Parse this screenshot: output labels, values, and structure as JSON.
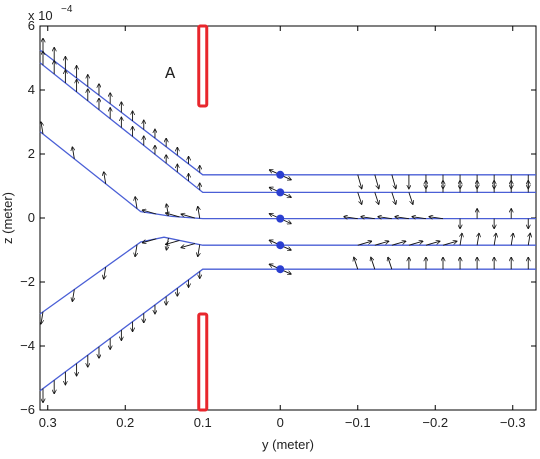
{
  "chart_data": {
    "type": "line",
    "title": "",
    "xlabel": "y (meter)",
    "ylabel": "z (meter)",
    "y_exponent_label": "x 10",
    "y_exponent_power": "−4",
    "xlim": [
      0.31,
      -0.33
    ],
    "ylim": [
      -6,
      6
    ],
    "x_reversed": true,
    "x_ticks": [
      0.3,
      0.2,
      0.1,
      0,
      -0.1,
      -0.2,
      -0.3
    ],
    "x_tick_labels": [
      "0.3",
      "0.2",
      "0.1",
      "0",
      "−0.1",
      "−0.2",
      "−0.3"
    ],
    "y_ticks": [
      6,
      4,
      2,
      0,
      -2,
      -4,
      -6
    ],
    "y_tick_labels": [
      "6",
      "4",
      "2",
      "0",
      "−2",
      "−4",
      "−6"
    ],
    "annotation": "A",
    "colors": {
      "trajectory": "#4a5fd6",
      "aperture": "#e8262c",
      "marker": "#2b3fd0",
      "arrow": "#111111"
    },
    "aperture_plates": [
      {
        "y": 0.1,
        "z_from": 6.0,
        "z_to": 3.5
      },
      {
        "y": 0.1,
        "z_from": -3.0,
        "z_to": -6.0
      }
    ],
    "series": [
      {
        "points": [
          [
            0.31,
            5.25
          ],
          [
            0.1,
            1.35
          ],
          [
            -0.33,
            1.35
          ]
        ]
      },
      {
        "points": [
          [
            0.31,
            4.85
          ],
          [
            0.1,
            0.8
          ],
          [
            -0.33,
            0.8
          ]
        ]
      },
      {
        "points": [
          [
            0.31,
            2.7
          ],
          [
            0.18,
            0.2
          ],
          [
            0.14,
            0.05
          ],
          [
            0.1,
            -0.02
          ],
          [
            -0.33,
            -0.02
          ]
        ]
      },
      {
        "points": [
          [
            0.31,
            -3.0
          ],
          [
            0.18,
            -0.75
          ],
          [
            0.15,
            -0.6
          ],
          [
            0.1,
            -0.85
          ],
          [
            -0.33,
            -0.85
          ]
        ]
      },
      {
        "points": [
          [
            0.31,
            -5.4
          ],
          [
            0.1,
            -1.6
          ],
          [
            -0.33,
            -1.6
          ]
        ]
      }
    ],
    "markers": [
      [
        0,
        1.35
      ],
      [
        0,
        0.8
      ],
      [
        0,
        -0.02
      ],
      [
        0,
        -0.85
      ],
      [
        0,
        -1.6
      ]
    ]
  }
}
